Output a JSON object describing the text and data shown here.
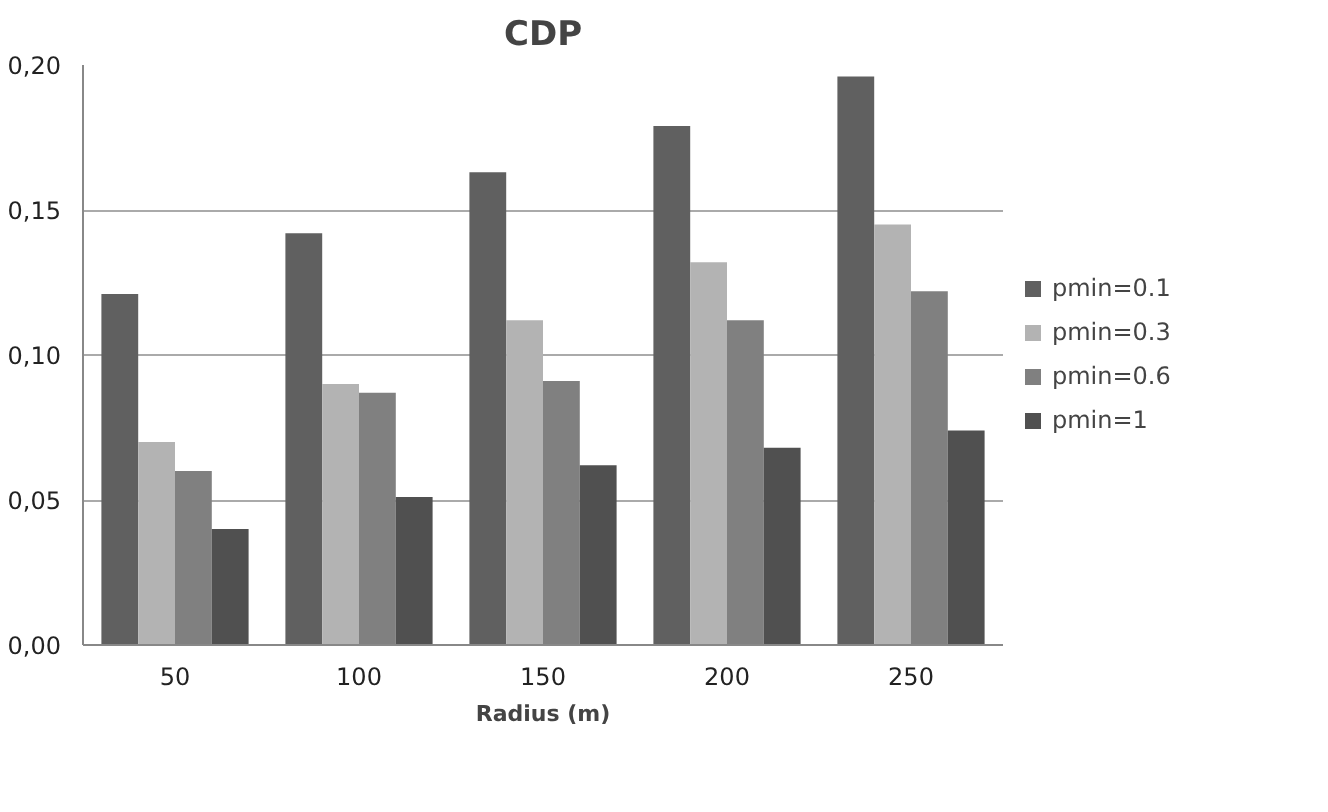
{
  "chart_data": {
    "type": "bar",
    "title": "CDP",
    "xlabel": "Radius (m)",
    "categories": [
      "50",
      "100",
      "150",
      "200",
      "250"
    ],
    "series": [
      {
        "name": "pmin=0.1",
        "color": "#606060",
        "values": [
          0.121,
          0.142,
          0.163,
          0.179,
          0.196
        ]
      },
      {
        "name": "pmin=0.3",
        "color": "#b3b3b3",
        "values": [
          0.07,
          0.09,
          0.112,
          0.132,
          0.145
        ]
      },
      {
        "name": "pmin=0.6",
        "color": "#808080",
        "values": [
          0.06,
          0.087,
          0.091,
          0.112,
          0.122
        ]
      },
      {
        "name": "pmin=1",
        "color": "#505050",
        "values": [
          0.04,
          0.051,
          0.062,
          0.068,
          0.074
        ]
      }
    ],
    "ylim": [
      0,
      0.2
    ],
    "yticks": [
      {
        "value": 0,
        "label": "0,00"
      },
      {
        "value": 0.05,
        "label": "0,05"
      },
      {
        "value": 0.1,
        "label": "0,10"
      },
      {
        "value": 0.15,
        "label": "0,15"
      },
      {
        "value": 0.2,
        "label": "0,20"
      }
    ],
    "grid": "y",
    "legend": "right"
  }
}
